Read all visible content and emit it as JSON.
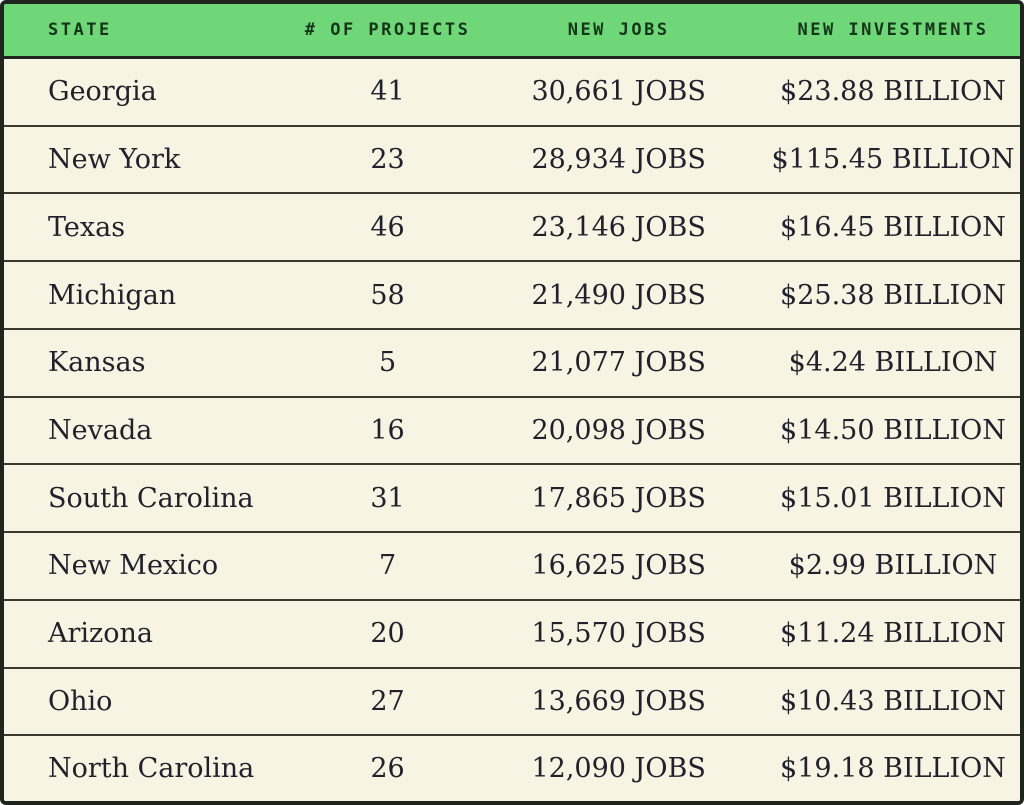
{
  "colors": {
    "header_bg": "#6fd777",
    "header_text": "#143519",
    "row_bg": "#f8f4e4",
    "ink": "#21212c",
    "border": "#20241e",
    "divider": "#3a3a31",
    "page_bg": "#ffffff"
  },
  "table": {
    "columns": [
      "STATE",
      "# OF PROJECTS",
      "NEW JOBS",
      "NEW INVESTMENTS"
    ],
    "rows": [
      {
        "state": "Georgia",
        "projects": "41",
        "jobs": "30,661 JOBS",
        "investments": "$23.88 BILLION"
      },
      {
        "state": "New York",
        "projects": "23",
        "jobs": "28,934 JOBS",
        "investments": "$115.45 BILLION"
      },
      {
        "state": "Texas",
        "projects": "46",
        "jobs": "23,146 JOBS",
        "investments": "$16.45 BILLION"
      },
      {
        "state": "Michigan",
        "projects": "58",
        "jobs": "21,490 JOBS",
        "investments": "$25.38 BILLION"
      },
      {
        "state": "Kansas",
        "projects": "5",
        "jobs": "21,077 JOBS",
        "investments": "$4.24 BILLION"
      },
      {
        "state": "Nevada",
        "projects": "16",
        "jobs": "20,098 JOBS",
        "investments": "$14.50 BILLION"
      },
      {
        "state": "South Carolina",
        "projects": "31",
        "jobs": "17,865 JOBS",
        "investments": "$15.01 BILLION"
      },
      {
        "state": "New Mexico",
        "projects": "7",
        "jobs": "16,625 JOBS",
        "investments": "$2.99 BILLION"
      },
      {
        "state": "Arizona",
        "projects": "20",
        "jobs": "15,570 JOBS",
        "investments": "$11.24 BILLION"
      },
      {
        "state": "Ohio",
        "projects": "27",
        "jobs": "13,669 JOBS",
        "investments": "$10.43 BILLION"
      },
      {
        "state": "North Carolina",
        "projects": "26",
        "jobs": "12,090 JOBS",
        "investments": "$19.18 BILLION"
      }
    ]
  },
  "chart_data": {
    "type": "table",
    "title": "",
    "columns": [
      "STATE",
      "# OF PROJECTS",
      "NEW JOBS",
      "NEW INVESTMENTS"
    ],
    "rows": [
      [
        "Georgia",
        41,
        "30,661 JOBS",
        "$23.88 BILLION"
      ],
      [
        "New York",
        23,
        "28,934 JOBS",
        "$115.45 BILLION"
      ],
      [
        "Texas",
        46,
        "23,146 JOBS",
        "$16.45 BILLION"
      ],
      [
        "Michigan",
        58,
        "21,490 JOBS",
        "$25.38 BILLION"
      ],
      [
        "Kansas",
        5,
        "21,077 JOBS",
        "$4.24 BILLION"
      ],
      [
        "Nevada",
        16,
        "20,098 JOBS",
        "$14.50 BILLION"
      ],
      [
        "South Carolina",
        31,
        "17,865 JOBS",
        "$15.01 BILLION"
      ],
      [
        "New Mexico",
        7,
        "16,625 JOBS",
        "$2.99 BILLION"
      ],
      [
        "Arizona",
        20,
        "15,570 JOBS",
        "$11.24 BILLION"
      ],
      [
        "Ohio",
        27,
        "13,669 JOBS",
        "$10.43 BILLION"
      ],
      [
        "North Carolina",
        26,
        "12,090 JOBS",
        "$19.18 BILLION"
      ]
    ],
    "new_jobs_values": [
      30661,
      28934,
      23146,
      21490,
      21077,
      20098,
      17865,
      16625,
      15570,
      13669,
      12090
    ],
    "new_investments_billions": [
      23.88,
      115.45,
      16.45,
      25.38,
      4.24,
      14.5,
      15.01,
      2.99,
      11.24,
      10.43,
      19.18
    ],
    "layout_hints": {
      "header_background": "#6fd777",
      "body_background": "#f8f4e4",
      "grid": "horizontal-only",
      "outer_border": true
    }
  }
}
